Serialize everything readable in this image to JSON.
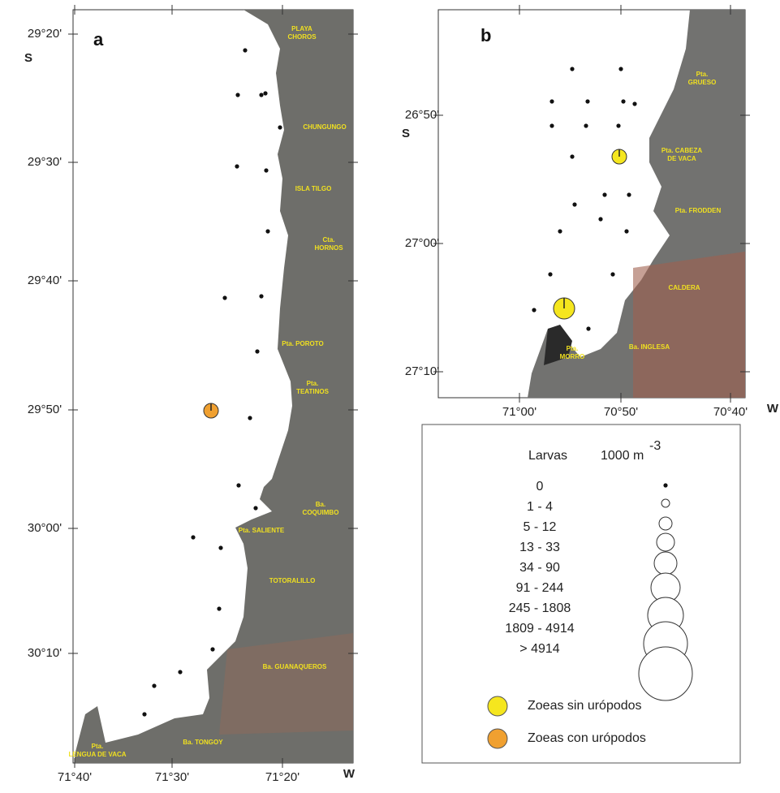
{
  "panel_a": {
    "label": "a",
    "lat_ticks": [
      "29°20'",
      "29°30'",
      "29°40'",
      "29°50'",
      "30°00'",
      "30°10'"
    ],
    "lat_hemisphere": "S",
    "lon_ticks": [
      "71°40'",
      "71°30'",
      "71°20'"
    ],
    "lon_hemisphere": "W",
    "places": [
      [
        "PLAYA",
        "CHOROS"
      ],
      [
        "CHUNGUNGO"
      ],
      [
        "ISLA TILGO"
      ],
      [
        "Cta.",
        "HORNOS"
      ],
      [
        "Pta. POROTO"
      ],
      [
        "Pta.",
        "TEATINOS"
      ],
      [
        "Ba.",
        "COQUIMBO"
      ],
      [
        "Pta. SALIENTE"
      ],
      [
        "TOTORALILLO"
      ],
      [
        "Ba. GUANAQUEROS"
      ],
      [
        "Ba. TONGOY"
      ],
      [
        "Pta.",
        "LENGUA DE VACA"
      ]
    ]
  },
  "panel_b": {
    "label": "b",
    "lat_ticks": [
      "26°50'",
      "27°00'",
      "27°10'"
    ],
    "lat_hemisphere": "S",
    "lon_ticks": [
      "71°00'",
      "70°50'",
      "70°40'"
    ],
    "lon_hemisphere": "W",
    "places": [
      [
        "Pta.",
        "GRUESO"
      ],
      [
        "Pta. CABEZA",
        "DE VACA"
      ],
      [
        "Pta. FRODDEN"
      ],
      [
        "CALDERA"
      ],
      [
        "Pta.",
        "MORRO"
      ],
      [
        "Ba. INGLESA"
      ]
    ]
  },
  "legend": {
    "title": "Larvas",
    "unit": "1000 m",
    "exponent": "-3",
    "classes": [
      "0",
      "1  -  4",
      "5  -  12",
      "13  -  33",
      "34  -  90",
      "91  -  244",
      "245  -  1808",
      "1809  -  4914",
      "> 4914"
    ],
    "symbols": [
      {
        "name": "Zoeas sin urópodos",
        "color": "#f5e61e"
      },
      {
        "name": "Zoeas con urópodos",
        "color": "#f0a030"
      }
    ]
  }
}
